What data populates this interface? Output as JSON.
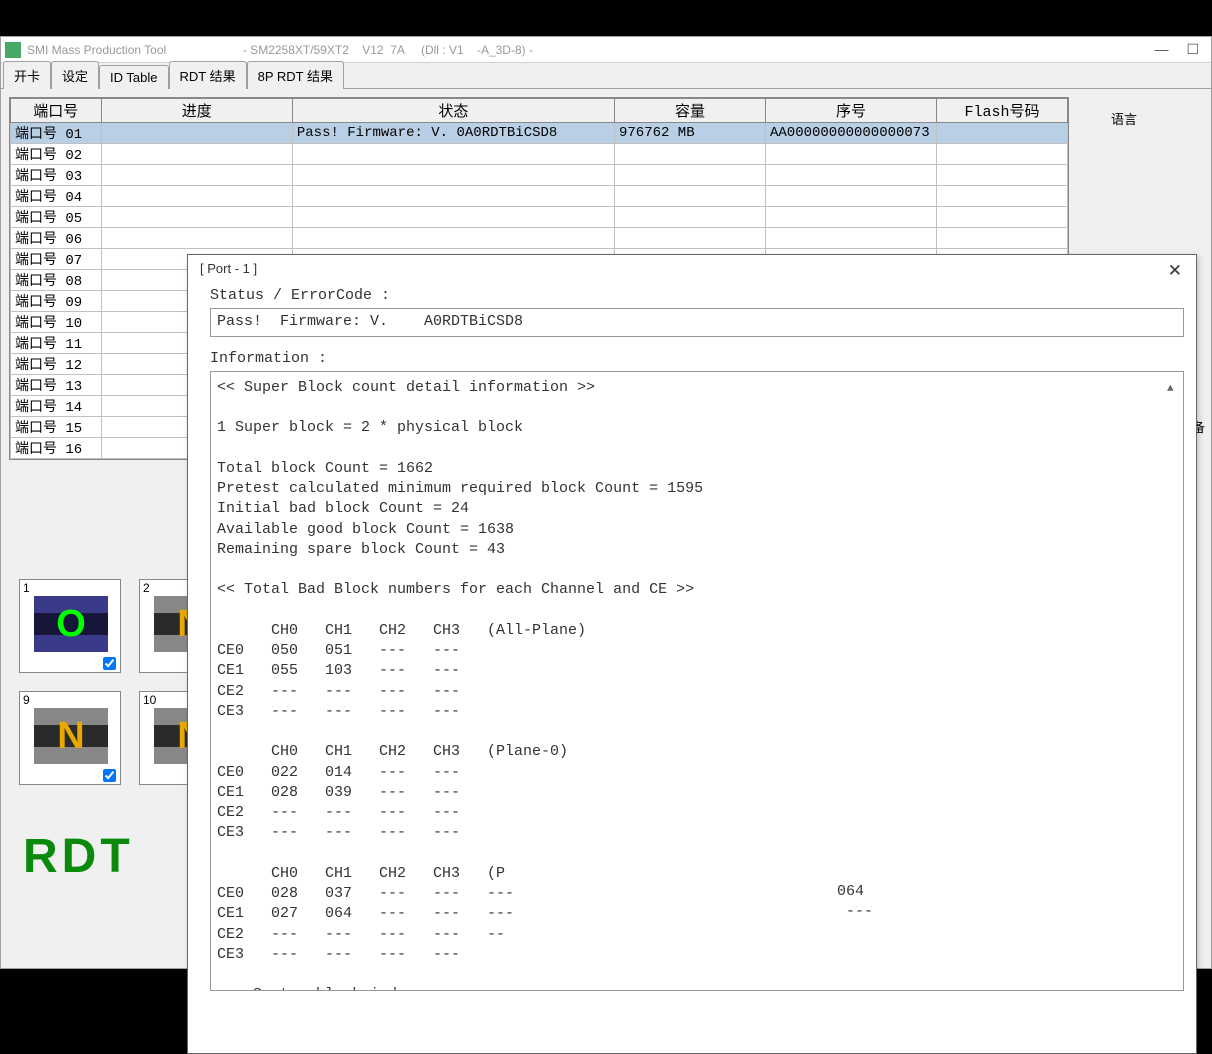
{
  "titlebar": {
    "app": "SMI Mass Production Tool",
    "build": "                       - SM2258XT/59XT2    V12  7A     (Dll : V1    -A_3D-8) -"
  },
  "win_controls": {
    "min": "—",
    "max": "☐"
  },
  "tabs": {
    "t1": "开卡",
    "t2": "设定",
    "t3": "ID Table",
    "t4": "RDT 结果",
    "t5": "8P RDT 结果"
  },
  "columns": {
    "port": "端口号",
    "prog": "进度",
    "status": "状态",
    "cap": "容量",
    "sn": "序号",
    "flash": "Flash号码"
  },
  "rows": [
    {
      "port": "端口号 01",
      "status": "Pass!  Firmware: V.   0A0RDTBiCSD8",
      "cap": "976762 MB",
      "sn": "AA00000000000000073"
    },
    {
      "port": "端口号 02"
    },
    {
      "port": "端口号 03"
    },
    {
      "port": "端口号 04"
    },
    {
      "port": "端口号 05"
    },
    {
      "port": "端口号 06"
    },
    {
      "port": "端口号 07"
    },
    {
      "port": "端口号 08"
    },
    {
      "port": "端口号 09"
    },
    {
      "port": "端口号 10"
    },
    {
      "port": "端口号 11"
    },
    {
      "port": "端口号 12"
    },
    {
      "port": "端口号 13"
    },
    {
      "port": "端口号 14"
    },
    {
      "port": "端口号 15"
    },
    {
      "port": "端口号 16"
    }
  ],
  "side": {
    "lang": "语言",
    "bei": "备"
  },
  "cells": {
    "c1": {
      "num": "1",
      "letter": "O",
      "cls": "inner-green"
    },
    "c2": {
      "num": "2",
      "letter": "N",
      "cls": "inner-orange"
    },
    "c9": {
      "num": "9",
      "letter": "N",
      "cls": "inner-orange"
    },
    "c10": {
      "num": "10",
      "letter": "N",
      "cls": "inner-orange"
    }
  },
  "rdt": "RDT",
  "popup": {
    "title": "[ Port - 1 ]",
    "label_status": "Status / ErrorCode :",
    "status_text": "Pass!  Firmware: V.    A0RDTBiCSD8",
    "label_info": "Information :",
    "info_text": "<< Super Block count detail information >>\n\n1 Super block = 2 * physical block\n\nTotal block Count = 1662\nPretest calculated minimum required block Count = 1595\nInitial bad block Count = 24\nAvailable good block Count = 1638\nRemaining spare block Count = 43\n\n<< Total Bad Block numbers for each Channel and CE >>\n\n      CH0   CH1   CH2   CH3   (All-Plane)\nCE0   050   051   ---   ---\nCE1   055   103   ---   ---\nCE2   ---   ---   ---   ---\nCE3   ---   ---   ---   ---\n\n      CH0   CH1   CH2   CH3   (Plane-0)\nCE0   022   014   ---   ---\nCE1   028   039   ---   ---\nCE2   ---   ---   ---   ---\nCE3   ---   ---   ---   ---\n\n      CH0   CH1   CH2   CH3   (P\nCE0   028   037   ---   ---   ---\nCE1   027   064   ---   ---   ---\nCE2   ---   ---   ---   ---   --\nCE3   ---   ---   ---   ---\n\n--- System block index ---",
    "extra": "      064\n       ---"
  }
}
